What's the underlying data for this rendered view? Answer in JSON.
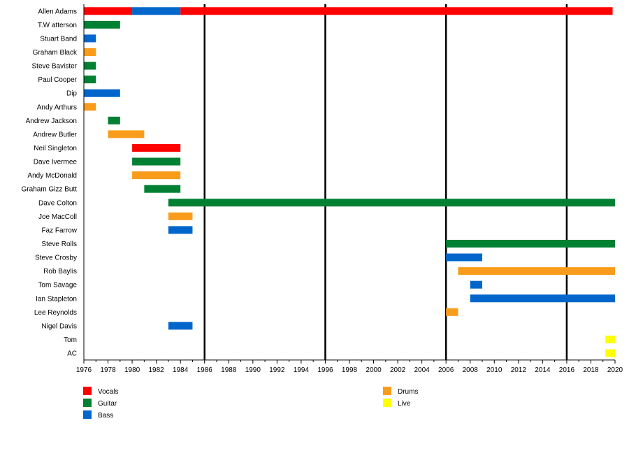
{
  "chart_data": {
    "type": "timeline",
    "x_range": [
      1976,
      2020
    ],
    "x_ticks": [
      1976,
      1978,
      1980,
      1982,
      1984,
      1986,
      1988,
      1990,
      1992,
      1994,
      1996,
      1998,
      2000,
      2002,
      2004,
      2006,
      2008,
      2010,
      2012,
      2014,
      2016,
      2018,
      2020
    ],
    "major_gridlines": [
      1986,
      1996,
      2006,
      2016
    ],
    "colors": {
      "Vocals": "#ff0000",
      "Guitar": "#008033",
      "Bass": "#0066cc",
      "Drums": "#f99c1c",
      "Live": "#ffff00"
    },
    "legend": [
      {
        "role": "Vocals",
        "label": "Vocals"
      },
      {
        "role": "Guitar",
        "label": "Guitar"
      },
      {
        "role": "Bass",
        "label": "Bass"
      },
      {
        "role": "Drums",
        "label": "Drums"
      },
      {
        "role": "Live",
        "label": "Live"
      }
    ],
    "members": [
      {
        "name": "Allen Adams",
        "spans": [
          {
            "role": "Vocals",
            "start": 1976,
            "end": 1980
          },
          {
            "role": "Bass",
            "start": 1980,
            "end": 1984
          },
          {
            "role": "Vocals",
            "start": 1984,
            "end": 2019.8
          }
        ]
      },
      {
        "name": "T.W atterson",
        "spans": [
          {
            "role": "Guitar",
            "start": 1976,
            "end": 1979
          }
        ]
      },
      {
        "name": "Stuart Band",
        "spans": [
          {
            "role": "Bass",
            "start": 1976,
            "end": 1977
          }
        ]
      },
      {
        "name": "Graham Black",
        "spans": [
          {
            "role": "Drums",
            "start": 1976,
            "end": 1977
          }
        ]
      },
      {
        "name": "Steve Bavister",
        "spans": [
          {
            "role": "Guitar",
            "start": 1976,
            "end": 1977
          }
        ]
      },
      {
        "name": "Paul Cooper",
        "spans": [
          {
            "role": "Guitar",
            "start": 1976,
            "end": 1977
          }
        ]
      },
      {
        "name": "Dip",
        "spans": [
          {
            "role": "Bass",
            "start": 1976,
            "end": 1979
          }
        ]
      },
      {
        "name": "Andy Arthurs",
        "spans": [
          {
            "role": "Drums",
            "start": 1976,
            "end": 1977
          }
        ]
      },
      {
        "name": "Andrew Jackson",
        "spans": [
          {
            "role": "Guitar",
            "start": 1978,
            "end": 1979
          }
        ]
      },
      {
        "name": "Andrew Butler",
        "spans": [
          {
            "role": "Drums",
            "start": 1978,
            "end": 1981
          }
        ]
      },
      {
        "name": "Neil Singleton",
        "spans": [
          {
            "role": "Vocals",
            "start": 1980,
            "end": 1984
          }
        ]
      },
      {
        "name": "Dave Ivermee",
        "spans": [
          {
            "role": "Guitar",
            "start": 1980,
            "end": 1984
          }
        ]
      },
      {
        "name": "Andy McDonald",
        "spans": [
          {
            "role": "Drums",
            "start": 1980,
            "end": 1984
          }
        ]
      },
      {
        "name": "Graham Gizz Butt",
        "spans": [
          {
            "role": "Guitar",
            "start": 1981,
            "end": 1984
          }
        ]
      },
      {
        "name": "Dave Colton",
        "spans": [
          {
            "role": "Guitar",
            "start": 1983,
            "end": 2020
          }
        ]
      },
      {
        "name": "Joe MacColl",
        "spans": [
          {
            "role": "Drums",
            "start": 1983,
            "end": 1985
          }
        ]
      },
      {
        "name": "Faz Farrow",
        "spans": [
          {
            "role": "Bass",
            "start": 1983,
            "end": 1985
          }
        ]
      },
      {
        "name": "Steve Rolls",
        "spans": [
          {
            "role": "Guitar",
            "start": 2006,
            "end": 2020
          }
        ]
      },
      {
        "name": "Steve Crosby",
        "spans": [
          {
            "role": "Bass",
            "start": 2006,
            "end": 2009
          }
        ]
      },
      {
        "name": "Rob Baylis",
        "spans": [
          {
            "role": "Drums",
            "start": 2007,
            "end": 2020
          }
        ]
      },
      {
        "name": "Tom Savage",
        "spans": [
          {
            "role": "Bass",
            "start": 2008,
            "end": 2009
          }
        ]
      },
      {
        "name": "Ian Stapleton",
        "spans": [
          {
            "role": "Bass",
            "start": 2008,
            "end": 2020
          }
        ]
      },
      {
        "name": "Lee Reynolds",
        "spans": [
          {
            "role": "Drums",
            "start": 2006,
            "end": 2007
          }
        ]
      },
      {
        "name": "Nigel Davis",
        "spans": [
          {
            "role": "Bass",
            "start": 1983,
            "end": 1985
          }
        ]
      },
      {
        "name": "Tom",
        "spans": [
          {
            "role": "Live",
            "start": 2019.2,
            "end": 2020
          }
        ]
      },
      {
        "name": "AC",
        "spans": [
          {
            "role": "Live",
            "start": 2019.2,
            "end": 2020
          }
        ]
      }
    ]
  }
}
